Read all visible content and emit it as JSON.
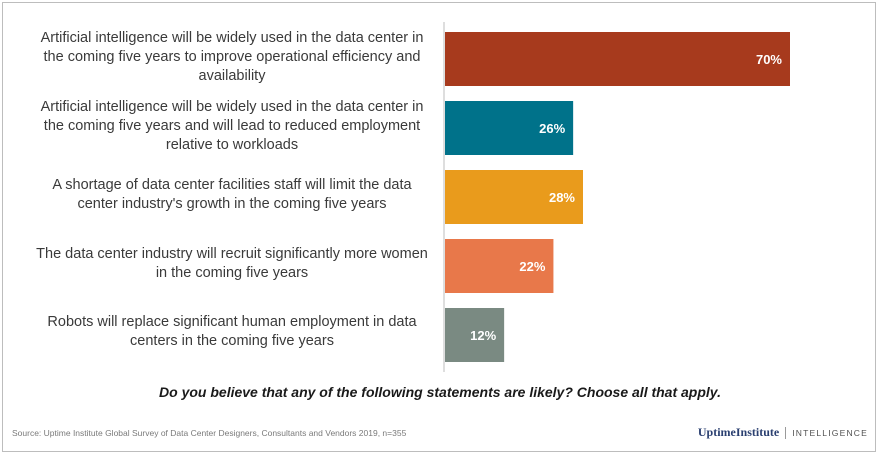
{
  "chart_data": {
    "type": "bar",
    "orientation": "horizontal",
    "categories": [
      "Artificial intelligence will be widely used in the data center in the coming five years to improve operational efficiency and availability",
      "Artificial intelligence will be widely used in the data center in the coming five years and will lead to reduced employment relative to workloads",
      "A shortage of data center facilities staff will limit the data center industry's growth in the coming five years",
      "The data center industry will recruit significantly more women in the coming five years",
      "Robots will replace significant human employment in data centers in the coming five years"
    ],
    "values": [
      70,
      26,
      28,
      22,
      12
    ],
    "data_labels": [
      "70%",
      "26%",
      "28%",
      "22%",
      "12%"
    ],
    "colors": [
      "#a73a1d",
      "#00728a",
      "#e99b1c",
      "#e8784a",
      "#7a8a82"
    ],
    "unit": "%",
    "xlim": [
      0,
      70
    ],
    "grid": false,
    "title": "",
    "xlabel": "",
    "ylabel": ""
  },
  "question": "Do you believe that any of the following statements are likely? Choose all that apply.",
  "source": "Source: Uptime Institute Global Survey of Data Center Designers, Consultants and Vendors 2019, n=355",
  "logo": {
    "main": "UptimeInstitute",
    "sub": "INTELLIGENCE"
  }
}
